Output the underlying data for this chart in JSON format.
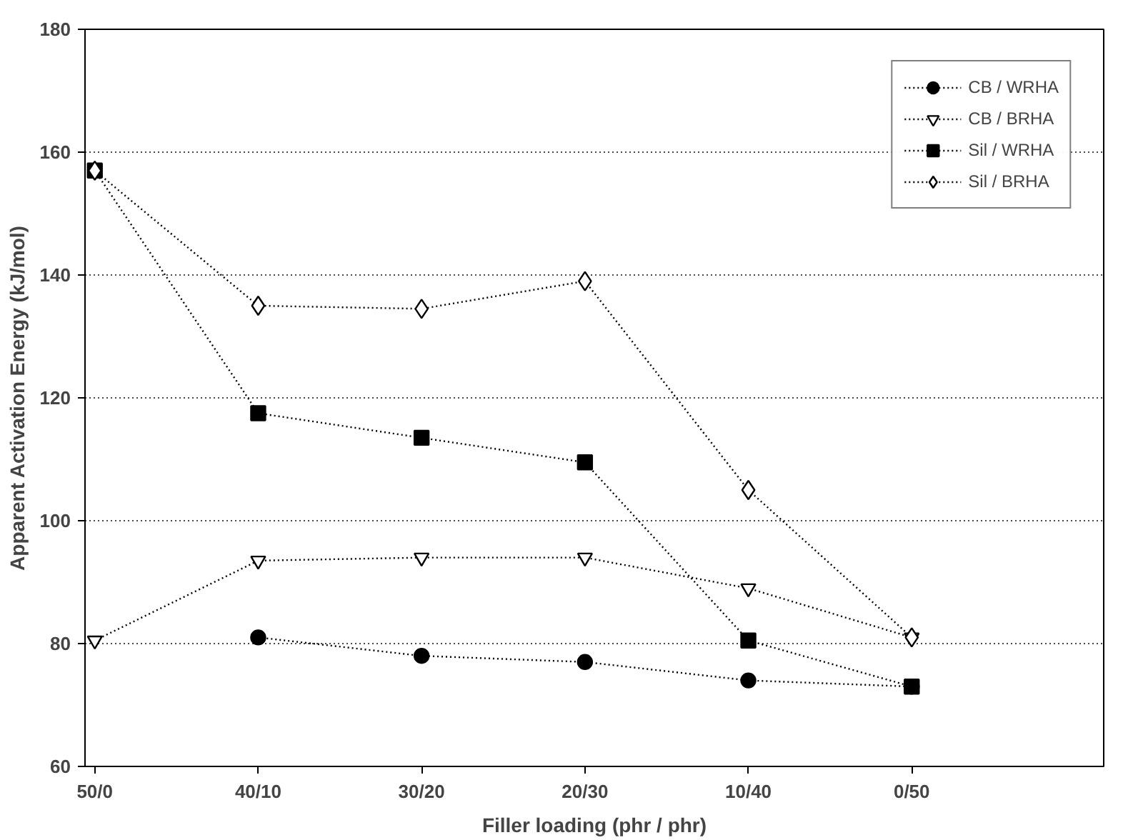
{
  "chart_data": {
    "type": "line",
    "xlabel": "Filler loading (phr / phr)",
    "ylabel": "Apparent Activation Energy (kJ/mol)",
    "categories": [
      "50/0",
      "40/10",
      "30/20",
      "20/30",
      "10/40",
      "0/50"
    ],
    "ylim": [
      60,
      180
    ],
    "yticks": [
      60,
      80,
      100,
      120,
      140,
      160,
      180
    ],
    "grid": "y",
    "legend": "top right",
    "line_style": "dotted",
    "series": [
      {
        "name": "CB / WRHA",
        "color": "#000000",
        "marker": "circle",
        "values": [
          null,
          81,
          78,
          77,
          74,
          73
        ]
      },
      {
        "name": "CB / BRHA",
        "color": "#000000",
        "marker": "triangle",
        "values": [
          80.5,
          93.5,
          94,
          94,
          89,
          81
        ]
      },
      {
        "name": "Sil / WRHA",
        "color": "#000000",
        "marker": "square",
        "values": [
          157,
          117.5,
          113.5,
          109.5,
          80.5,
          73
        ]
      },
      {
        "name": "Sil / BRHA",
        "color": "#000000",
        "marker": "diamond",
        "values": [
          157,
          135,
          134.5,
          139,
          105,
          81
        ]
      }
    ]
  }
}
